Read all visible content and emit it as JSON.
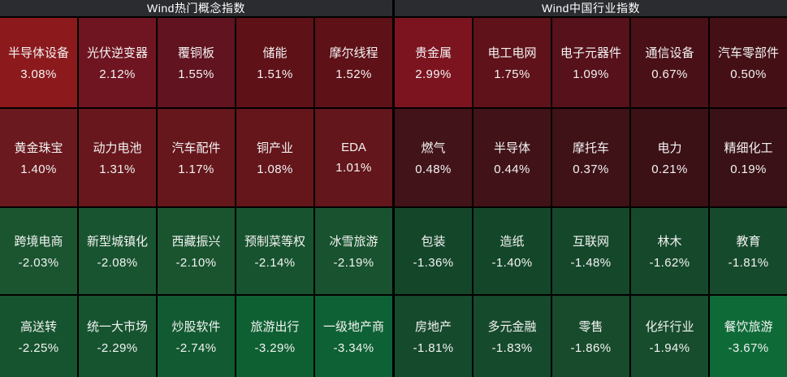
{
  "page": {
    "background": "#000000",
    "header_bg": "#2a2c2f",
    "header_text_color": "#ffffff",
    "cell_text_color": "#f3f3f3",
    "positive_accent": "#8c1a1d",
    "negative_accent": "#0e6b38"
  },
  "chart_data": [
    {
      "type": "heatmap",
      "title": "Wind热门概念指数",
      "legend_position": "none",
      "grid": true,
      "cells": [
        {
          "label": "半导体设备",
          "value": 3.08,
          "display": "3.08%",
          "bg": "#8c1a1d"
        },
        {
          "label": "光伏逆变器",
          "value": 2.12,
          "display": "2.12%",
          "bg": "#6f1521"
        },
        {
          "label": "覆铜板",
          "value": 1.55,
          "display": "1.55%",
          "bg": "#611320"
        },
        {
          "label": "储能",
          "value": 1.51,
          "display": "1.51%",
          "bg": "#5e1117"
        },
        {
          "label": "摩尔线程",
          "value": 1.52,
          "display": "1.52%",
          "bg": "#5f1118"
        },
        {
          "label": "黄金珠宝",
          "value": 1.4,
          "display": "1.40%",
          "bg": "#6a191e"
        },
        {
          "label": "动力电池",
          "value": 1.31,
          "display": "1.31%",
          "bg": "#68181d"
        },
        {
          "label": "汽车配件",
          "value": 1.17,
          "display": "1.17%",
          "bg": "#66171c"
        },
        {
          "label": "铜产业",
          "value": 1.08,
          "display": "1.08%",
          "bg": "#64161b"
        },
        {
          "label": "EDA",
          "value": 1.01,
          "display": "1.01%",
          "bg": "#63161b"
        },
        {
          "label": "跨境电商",
          "value": -2.03,
          "display": "-2.03%",
          "bg": "#1a5530"
        },
        {
          "label": "新型城镇化",
          "value": -2.08,
          "display": "-2.08%",
          "bg": "#195430"
        },
        {
          "label": "西藏振兴",
          "value": -2.1,
          "display": "-2.10%",
          "bg": "#19542f"
        },
        {
          "label": "预制菜等权",
          "value": -2.14,
          "display": "-2.14%",
          "bg": "#18532f"
        },
        {
          "label": "冰雪旅游",
          "value": -2.19,
          "display": "-2.19%",
          "bg": "#18522e"
        },
        {
          "label": "高送转",
          "value": -2.25,
          "display": "-2.25%",
          "bg": "#16542f"
        },
        {
          "label": "统一大市场",
          "value": -2.29,
          "display": "-2.29%",
          "bg": "#165430"
        },
        {
          "label": "炒股软件",
          "value": -2.74,
          "display": "-2.74%",
          "bg": "#125a31"
        },
        {
          "label": "旅游出行",
          "value": -3.29,
          "display": "-3.29%",
          "bg": "#0e6033"
        },
        {
          "label": "一级地产商",
          "value": -3.34,
          "display": "-3.34%",
          "bg": "#0e6134"
        }
      ]
    },
    {
      "type": "heatmap",
      "title": "Wind中国行业指数",
      "legend_position": "none",
      "grid": true,
      "cells": [
        {
          "label": "贵金属",
          "value": 2.99,
          "display": "2.99%",
          "bg": "#7c1420"
        },
        {
          "label": "电工电网",
          "value": 1.75,
          "display": "1.75%",
          "bg": "#5f1219"
        },
        {
          "label": "电子元器件",
          "value": 1.09,
          "display": "1.09%",
          "bg": "#56111a"
        },
        {
          "label": "通信设备",
          "value": 0.67,
          "display": "0.67%",
          "bg": "#4a1017"
        },
        {
          "label": "汽车零部件",
          "value": 0.5,
          "display": "0.50%",
          "bg": "#441016"
        },
        {
          "label": "燃气",
          "value": 0.48,
          "display": "0.48%",
          "bg": "#421419"
        },
        {
          "label": "半导体",
          "value": 0.44,
          "display": "0.44%",
          "bg": "#411318"
        },
        {
          "label": "摩托车",
          "value": 0.37,
          "display": "0.37%",
          "bg": "#3f1217"
        },
        {
          "label": "电力",
          "value": 0.21,
          "display": "0.21%",
          "bg": "#3b1116"
        },
        {
          "label": "精细化工",
          "value": 0.19,
          "display": "0.19%",
          "bg": "#3a1116"
        },
        {
          "label": "包装",
          "value": -1.36,
          "display": "-1.36%",
          "bg": "#14462a"
        },
        {
          "label": "造纸",
          "value": -1.4,
          "display": "-1.40%",
          "bg": "#14472a"
        },
        {
          "label": "互联网",
          "value": -1.48,
          "display": "-1.48%",
          "bg": "#15482b"
        },
        {
          "label": "林木",
          "value": -1.62,
          "display": "-1.62%",
          "bg": "#16492b"
        },
        {
          "label": "教育",
          "value": -1.81,
          "display": "-1.81%",
          "bg": "#164a2c"
        },
        {
          "label": "房地产",
          "value": -1.81,
          "display": "-1.81%",
          "bg": "#164a2c"
        },
        {
          "label": "多元金融",
          "value": -1.83,
          "display": "-1.83%",
          "bg": "#164a2c"
        },
        {
          "label": "零售",
          "value": -1.86,
          "display": "-1.86%",
          "bg": "#174b2c"
        },
        {
          "label": "化纤行业",
          "value": -1.94,
          "display": "-1.94%",
          "bg": "#174c2d"
        },
        {
          "label": "餐饮旅游",
          "value": -3.67,
          "display": "-3.67%",
          "bg": "#0e6b38"
        }
      ]
    }
  ]
}
